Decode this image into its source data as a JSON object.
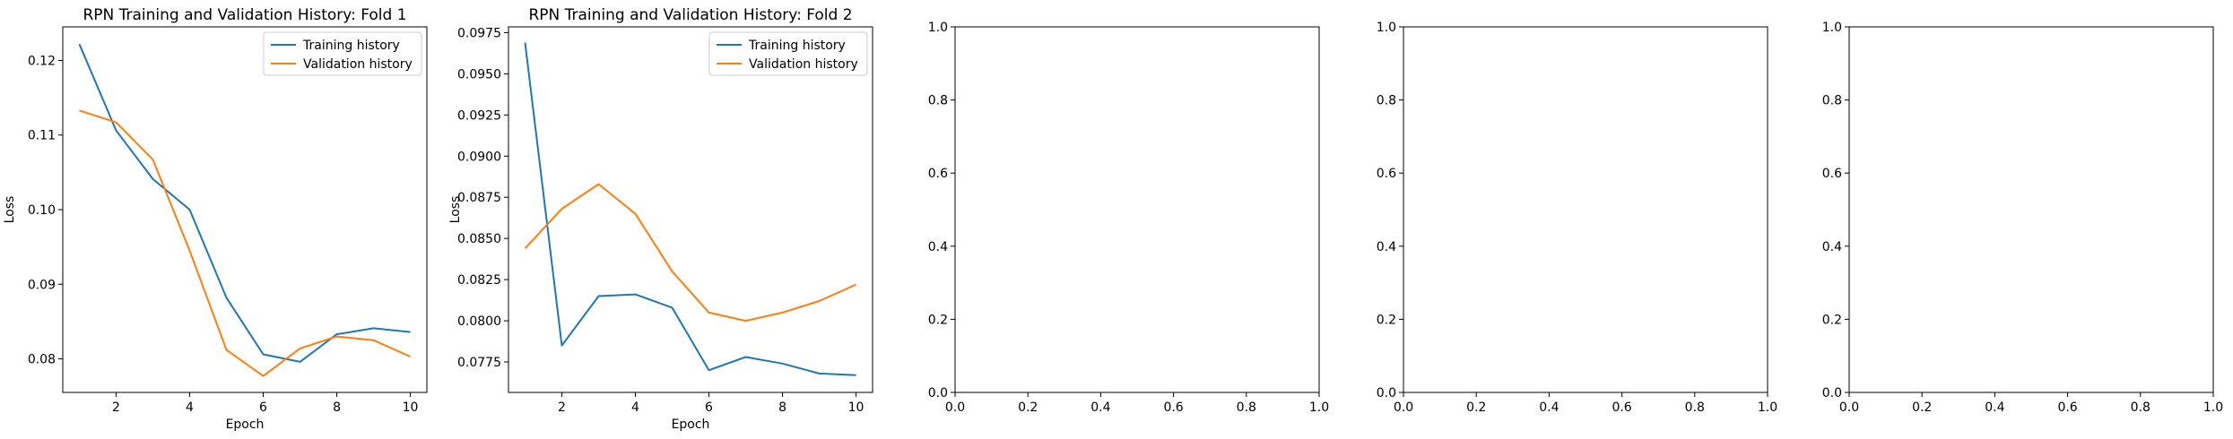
{
  "chart_data": [
    {
      "type": "line",
      "title": "RPN Training and Validation History: Fold 1",
      "xlabel": "Epoch",
      "ylabel": "Loss",
      "xlim": [
        0.55,
        10.45
      ],
      "ylim": [
        0.0755,
        0.1245
      ],
      "xticks": [
        2,
        4,
        6,
        8,
        10
      ],
      "yticks": [
        0.08,
        0.09,
        0.1,
        0.11,
        0.12
      ],
      "ytick_labels": [
        "0.08",
        "0.09",
        "0.10",
        "0.11",
        "0.12"
      ],
      "legend_position": "upper right",
      "x": [
        1,
        2,
        3,
        4,
        5,
        6,
        7,
        8,
        9,
        10
      ],
      "series": [
        {
          "name": "Training history",
          "color": "#1f77b4",
          "values": [
            0.1222,
            0.1106,
            0.1041,
            0.1,
            0.0882,
            0.0806,
            0.0796,
            0.0833,
            0.0841,
            0.0836
          ]
        },
        {
          "name": "Validation history",
          "color": "#ff7f0e",
          "values": [
            0.1133,
            0.1117,
            0.1067,
            0.0945,
            0.0812,
            0.0777,
            0.0814,
            0.083,
            0.0825,
            0.0803
          ]
        }
      ]
    },
    {
      "type": "line",
      "title": "RPN Training and Validation History: Fold 2",
      "xlabel": "Epoch",
      "ylabel": "Loss",
      "xlim": [
        0.55,
        10.45
      ],
      "ylim": [
        0.07565,
        0.09785
      ],
      "xticks": [
        2,
        4,
        6,
        8,
        10
      ],
      "yticks": [
        0.0775,
        0.08,
        0.0825,
        0.085,
        0.0875,
        0.09,
        0.0925,
        0.095,
        0.0975
      ],
      "ytick_labels": [
        "0.0775",
        "0.0800",
        "0.0825",
        "0.0850",
        "0.0875",
        "0.0900",
        "0.0925",
        "0.0950",
        "0.0975"
      ],
      "legend_position": "upper right",
      "x": [
        1,
        2,
        3,
        4,
        5,
        6,
        7,
        8,
        9,
        10
      ],
      "series": [
        {
          "name": "Training history",
          "color": "#1f77b4",
          "values": [
            0.0969,
            0.0785,
            0.0815,
            0.0816,
            0.0808,
            0.077,
            0.0778,
            0.0774,
            0.0768,
            0.0767
          ]
        },
        {
          "name": "Validation history",
          "color": "#ff7f0e",
          "values": [
            0.0844,
            0.0868,
            0.0883,
            0.0865,
            0.083,
            0.0805,
            0.08,
            0.0805,
            0.0812,
            0.0822
          ]
        }
      ]
    },
    {
      "type": "line",
      "title": "",
      "xlabel": "",
      "ylabel": "",
      "xlim": [
        0,
        1
      ],
      "ylim": [
        0,
        1
      ],
      "xticks": [
        0,
        0.2,
        0.4,
        0.6,
        0.8,
        1.0
      ],
      "xtick_labels": [
        "0.0",
        "0.2",
        "0.4",
        "0.6",
        "0.8",
        "1.0"
      ],
      "yticks": [
        0,
        0.2,
        0.4,
        0.6,
        0.8,
        1.0
      ],
      "ytick_labels": [
        "0.0",
        "0.2",
        "0.4",
        "0.6",
        "0.8",
        "1.0"
      ],
      "series": []
    },
    {
      "type": "line",
      "title": "",
      "xlabel": "",
      "ylabel": "",
      "xlim": [
        0,
        1
      ],
      "ylim": [
        0,
        1
      ],
      "xticks": [
        0,
        0.2,
        0.4,
        0.6,
        0.8,
        1.0
      ],
      "xtick_labels": [
        "0.0",
        "0.2",
        "0.4",
        "0.6",
        "0.8",
        "1.0"
      ],
      "yticks": [
        0,
        0.2,
        0.4,
        0.6,
        0.8,
        1.0
      ],
      "ytick_labels": [
        "0.0",
        "0.2",
        "0.4",
        "0.6",
        "0.8",
        "1.0"
      ],
      "series": []
    },
    {
      "type": "line",
      "title": "",
      "xlabel": "",
      "ylabel": "",
      "xlim": [
        0,
        1
      ],
      "ylim": [
        0,
        1
      ],
      "xticks": [
        0,
        0.2,
        0.4,
        0.6,
        0.8,
        1.0
      ],
      "xtick_labels": [
        "0.0",
        "0.2",
        "0.4",
        "0.6",
        "0.8",
        "1.0"
      ],
      "yticks": [
        0,
        0.2,
        0.4,
        0.6,
        0.8,
        1.0
      ],
      "ytick_labels": [
        "0.0",
        "0.2",
        "0.4",
        "0.6",
        "0.8",
        "1.0"
      ],
      "series": []
    }
  ]
}
